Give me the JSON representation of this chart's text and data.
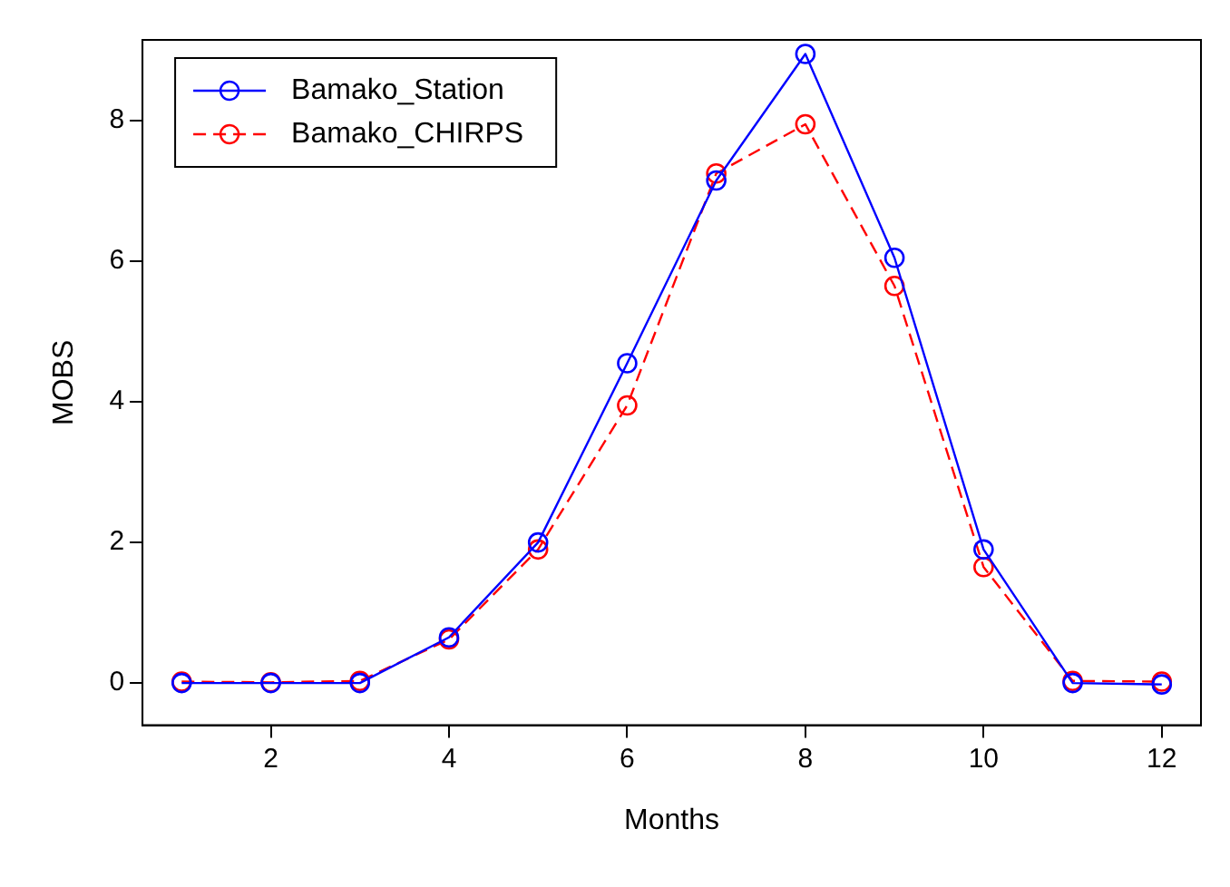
{
  "chart_data": {
    "type": "line",
    "xlabel": "Months",
    "ylabel": "MOBS",
    "x": [
      1,
      2,
      3,
      4,
      5,
      6,
      7,
      8,
      9,
      10,
      11,
      12
    ],
    "series": [
      {
        "name": "Bamako_Station",
        "color": "#0000ff",
        "line_style": "solid",
        "values": [
          0,
          0,
          0,
          0.65,
          2.0,
          4.55,
          7.15,
          8.95,
          6.05,
          1.9,
          0,
          -0.02
        ]
      },
      {
        "name": "Bamako_CHIRPS",
        "color": "#ff0000",
        "line_style": "dashed",
        "values": [
          0.02,
          0.01,
          0.03,
          0.62,
          1.9,
          3.95,
          7.25,
          7.95,
          5.65,
          1.65,
          0.03,
          0.02
        ]
      }
    ],
    "xlim": [
      0.56,
      12.44
    ],
    "xticks": [
      2,
      4,
      6,
      8,
      10,
      12
    ],
    "ylim": [
      -0.6,
      9.15
    ],
    "yticks": [
      0,
      2,
      4,
      6,
      8
    ],
    "marker": "circle",
    "grid": false,
    "legend": "top left"
  }
}
